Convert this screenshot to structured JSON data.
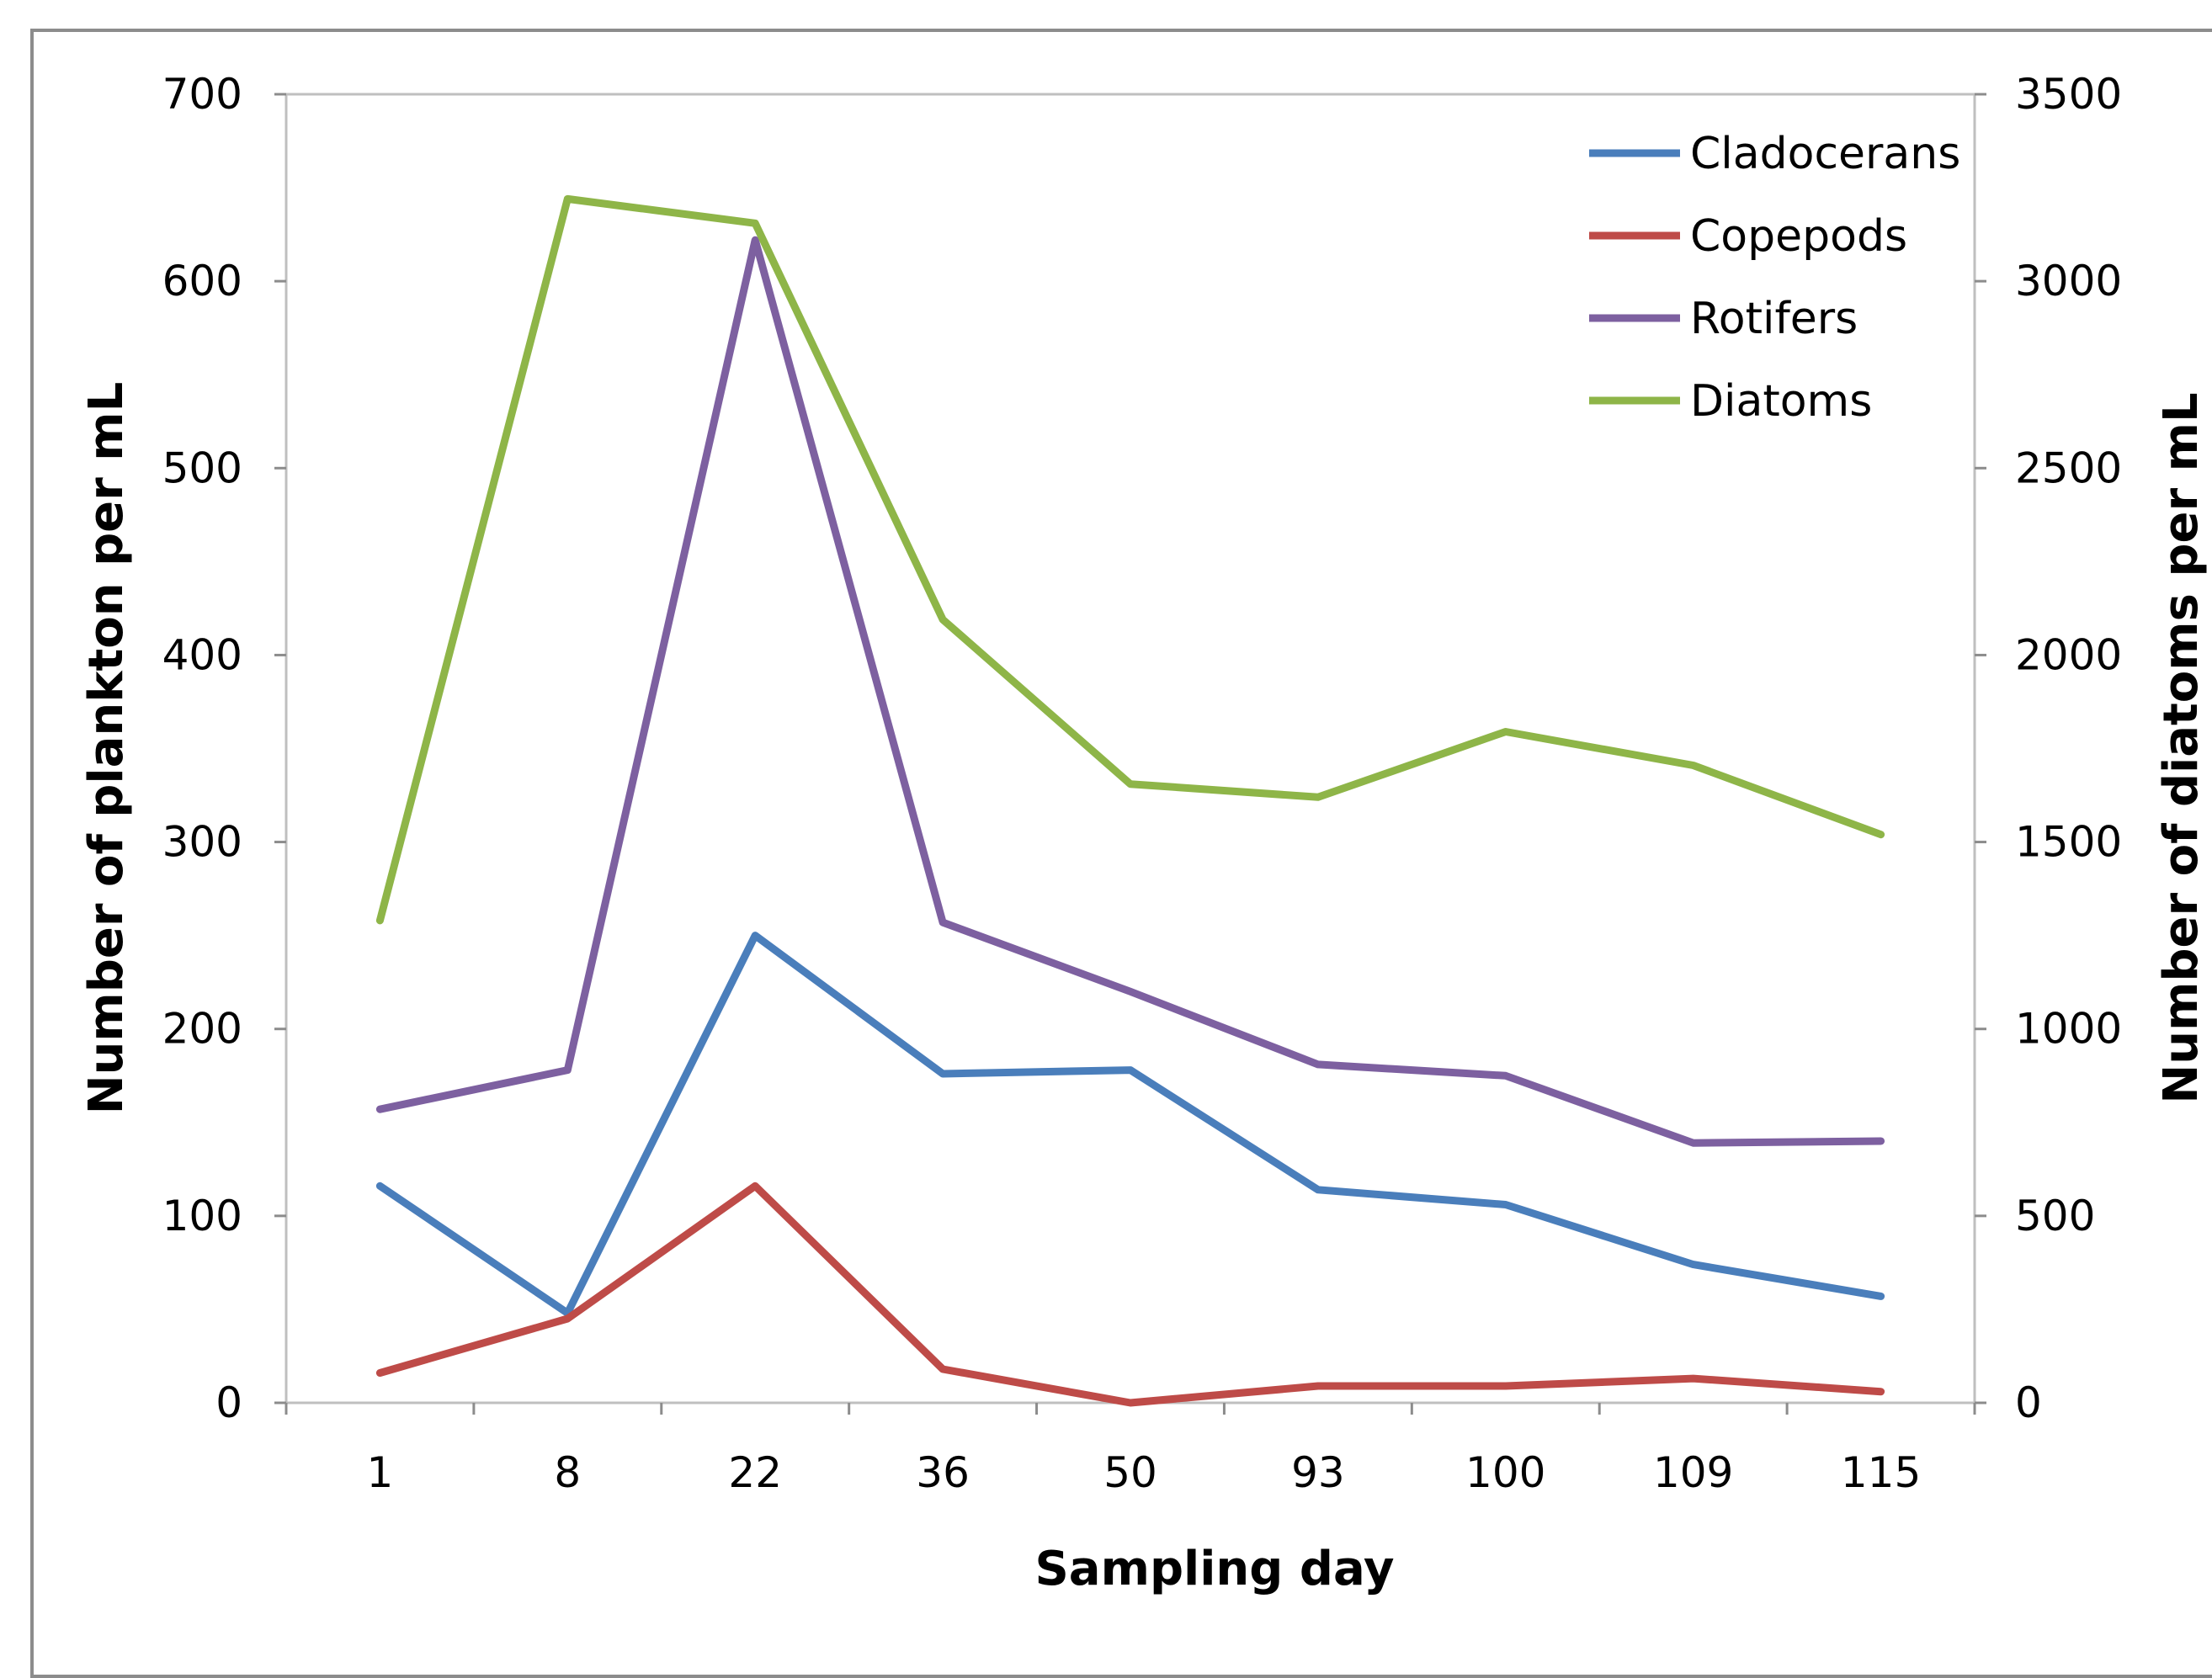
{
  "chart_data": {
    "type": "line",
    "title": "",
    "xlabel": "Sampling day",
    "ylabel": "Number of plankton per mL",
    "y2label": "Number of diatoms per mL",
    "categories": [
      "1",
      "8",
      "22",
      "36",
      "50",
      "93",
      "100",
      "109",
      "115"
    ],
    "ylim": [
      0,
      700
    ],
    "y2lim": [
      0,
      3500
    ],
    "yticks": [
      "0",
      "100",
      "200",
      "300",
      "400",
      "500",
      "600",
      "700"
    ],
    "y2ticks": [
      "0",
      "500",
      "1000",
      "1500",
      "2000",
      "2500",
      "3000",
      "3500"
    ],
    "grid": false,
    "legend_position": "top-right",
    "series": [
      {
        "name": "Cladocerans",
        "axis": "left",
        "color": "#4A7EBB",
        "values": [
          116,
          48,
          250,
          176,
          178,
          114,
          106,
          74,
          57
        ]
      },
      {
        "name": "Copepods",
        "axis": "left",
        "color": "#BE4B48",
        "values": [
          16,
          45,
          116,
          18,
          0,
          9,
          9,
          13,
          6
        ]
      },
      {
        "name": "Rotifers",
        "axis": "left",
        "color": "#7D60A0",
        "values": [
          157,
          178,
          622,
          257,
          220,
          181,
          175,
          139,
          140
        ]
      },
      {
        "name": "Diatoms",
        "axis": "right",
        "color": "#8EB548",
        "values": [
          1290,
          3220,
          3155,
          2095,
          1655,
          1620,
          1795,
          1705,
          1520
        ]
      }
    ]
  }
}
